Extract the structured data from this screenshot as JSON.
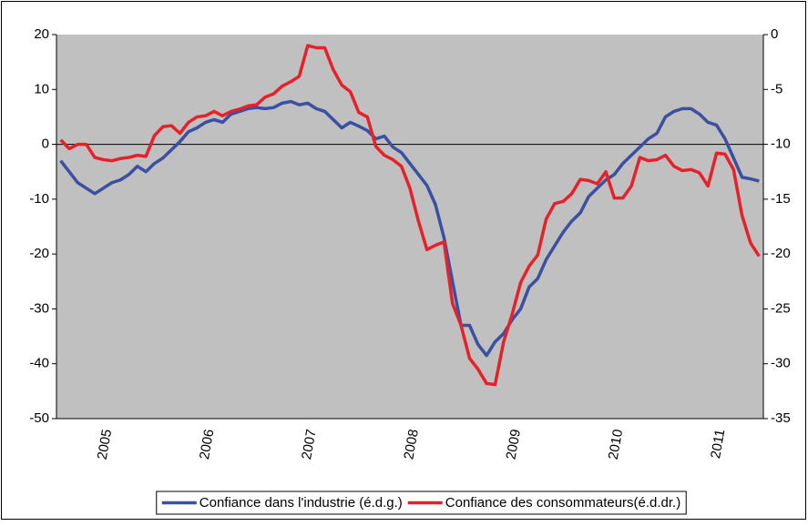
{
  "chart_data": {
    "type": "line",
    "categories": [
      null,
      null,
      null,
      null,
      null,
      "2005",
      null,
      null,
      null,
      null,
      null,
      null,
      null,
      null,
      null,
      null,
      null,
      "2006",
      null,
      null,
      null,
      null,
      null,
      null,
      null,
      null,
      null,
      null,
      null,
      "2007",
      null,
      null,
      null,
      null,
      null,
      null,
      null,
      null,
      null,
      null,
      null,
      "2008",
      null,
      null,
      null,
      null,
      null,
      null,
      null,
      null,
      null,
      null,
      null,
      "2009",
      null,
      null,
      null,
      null,
      null,
      null,
      null,
      null,
      null,
      null,
      null,
      "2010",
      null,
      null,
      null,
      null,
      null,
      null,
      null,
      null,
      null,
      null,
      null,
      "2011",
      null,
      null,
      null,
      null,
      null
    ],
    "series": [
      {
        "name": "Confiance dans l'industrie (é.d.g.)",
        "color": "#3a50a0",
        "values": [
          -3,
          -5,
          -7,
          -8,
          -9,
          -8,
          -7,
          -6.5,
          -5.5,
          -4,
          -5,
          -3.5,
          -2.5,
          -1,
          0.5,
          2.3,
          3,
          4,
          4.5,
          4,
          5.5,
          6,
          6.5,
          6.7,
          6.5,
          6.7,
          7.5,
          7.8,
          7.2,
          7.5,
          6.5,
          6,
          4.5,
          3,
          4,
          3.3,
          2.5,
          1,
          1.5,
          -0.5,
          -1.5,
          -3.5,
          -5.5,
          -7.5,
          -11,
          -17,
          -25,
          -33,
          -33,
          -36.5,
          -38.5,
          -36,
          -34.5,
          -32,
          -30,
          -26,
          -24.5,
          -21,
          -18.5,
          -16,
          -14,
          -12.5,
          -9.5,
          -8,
          -6.5,
          -5.5,
          -3.5,
          -2,
          -0.5,
          1,
          2,
          5,
          6,
          6.5,
          6.5,
          5.5,
          4,
          3.5,
          1,
          -2.5,
          -6,
          -6.3,
          -6.7
        ]
      },
      {
        "name": "Confiance des consommateurs(é.d.dr.)",
        "color": "#e8202a",
        "axis": "y2",
        "values": [
          -9.6,
          -10.4,
          -10,
          -10,
          -11.2,
          -11.4,
          -11.5,
          -11.3,
          -11.2,
          -11,
          -11.1,
          -9.2,
          -8.4,
          -8.3,
          -9,
          -8,
          -7.5,
          -7.4,
          -7,
          -7.4,
          -7,
          -6.8,
          -6.5,
          -6.4,
          -5.7,
          -5.4,
          -4.7,
          -4.3,
          -3.8,
          -1,
          -1.2,
          -1.2,
          -3.2,
          -4.6,
          -5.2,
          -7.1,
          -7.5,
          -10.2,
          -11,
          -11.4,
          -12,
          -14,
          -17,
          -19.6,
          -19.2,
          -18.9,
          -24.5,
          -26.5,
          -29.5,
          -30.5,
          -31.8,
          -31.9,
          -28,
          -25.5,
          -22.6,
          -21.1,
          -20.1,
          -16.8,
          -15.4,
          -15.2,
          -14.5,
          -13.2,
          -13.3,
          -13.6,
          -12.5,
          -14.9,
          -14.9,
          -13.8,
          -11.2,
          -11.5,
          -11.4,
          -11,
          -12,
          -12.4,
          -12.3,
          -12.6,
          -13.8,
          -10.8,
          -10.9,
          -12.3,
          -16.5,
          -19,
          -20.2
        ]
      }
    ],
    "ylim": [
      -50,
      20
    ],
    "yticks": [
      -50,
      -40,
      -30,
      -20,
      -10,
      0,
      10,
      20
    ],
    "y2lim": [
      -35,
      0
    ],
    "y2ticks": [
      -35,
      -30,
      -25,
      -20,
      -15,
      -10,
      -5,
      0
    ],
    "legend": "bottom"
  }
}
